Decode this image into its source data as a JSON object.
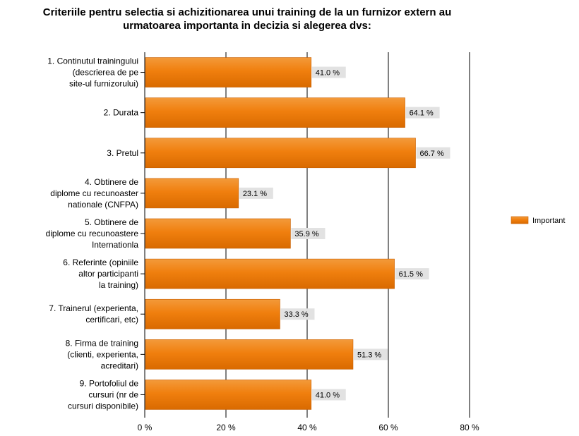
{
  "chart_data": {
    "type": "bar",
    "orientation": "horizontal",
    "title": [
      "Criteriile pentru selectia si achizitionarea unui training de la un furnizor extern au",
      "urmatoarea importanta in decizia si alegerea dvs:"
    ],
    "categories": [
      [
        "1. Continutul trainingului",
        "(descrierea de pe",
        "site-ul furnizorului)"
      ],
      [
        "2. Durata"
      ],
      [
        "3. Pretul"
      ],
      [
        "4. Obtinere de",
        "diplome cu recunoaster",
        "nationale (CNFPA)"
      ],
      [
        "5. Obtinere de",
        "diplome cu recunoastere",
        "Internationla"
      ],
      [
        "6. Referinte (opiniile",
        "altor participanti",
        "la training)"
      ],
      [
        "7. Trainerul (experienta,",
        "certificari, etc)"
      ],
      [
        "8. Firma de training",
        "(clienti, experienta,",
        "acreditari)"
      ],
      [
        "9. Portofoliul de",
        "cursuri (nr de",
        "cursuri disponibile)"
      ]
    ],
    "series": [
      {
        "name": "Important",
        "values": [
          41.0,
          64.1,
          66.7,
          23.1,
          35.9,
          61.5,
          33.3,
          51.3,
          41.0
        ],
        "labels": [
          "41.0 %",
          "64.1 %",
          "66.7 %",
          "23.1 %",
          "35.9 %",
          "61.5 %",
          "33.3 %",
          "51.3 %",
          "41.0 %"
        ]
      }
    ],
    "xlim": [
      0,
      80
    ],
    "xticks": [
      0,
      20,
      40,
      60,
      80
    ],
    "xtick_labels": [
      "0 %",
      "20 %",
      "40 %",
      "60 %",
      "80 %"
    ],
    "grid": true,
    "legend_position": "right",
    "colors": {
      "bar": "#F07F0E",
      "bar_dark": "#C85F00",
      "value_bg": "#E2E2E2",
      "grid": "#000000"
    }
  }
}
